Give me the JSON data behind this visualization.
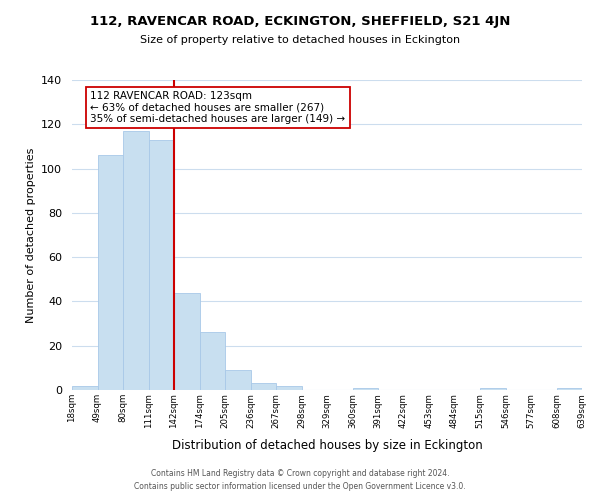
{
  "title": "112, RAVENCAR ROAD, ECKINGTON, SHEFFIELD, S21 4JN",
  "subtitle": "Size of property relative to detached houses in Eckington",
  "xlabel": "Distribution of detached houses by size in Eckington",
  "ylabel": "Number of detached properties",
  "bar_values": [
    2,
    106,
    117,
    113,
    44,
    26,
    9,
    3,
    2,
    0,
    0,
    1,
    0,
    0,
    0,
    0,
    1,
    0,
    0,
    1
  ],
  "bar_labels": [
    "18sqm",
    "49sqm",
    "80sqm",
    "111sqm",
    "142sqm",
    "174sqm",
    "205sqm",
    "236sqm",
    "267sqm",
    "298sqm",
    "329sqm",
    "360sqm",
    "391sqm",
    "422sqm",
    "453sqm",
    "484sqm",
    "515sqm",
    "546sqm",
    "577sqm",
    "608sqm",
    "639sqm"
  ],
  "bar_color": "#c8dff0",
  "bar_edge_color": "#a8c8e8",
  "vline_x": 3.5,
  "vline_color": "#cc0000",
  "annotation_title": "112 RAVENCAR ROAD: 123sqm",
  "annotation_line1": "← 63% of detached houses are smaller (267)",
  "annotation_line2": "35% of semi-detached houses are larger (149) →",
  "annotation_box_color": "#ffffff",
  "annotation_box_edge": "#cc0000",
  "ylim": [
    0,
    140
  ],
  "yticks": [
    0,
    20,
    40,
    60,
    80,
    100,
    120,
    140
  ],
  "footer1": "Contains HM Land Registry data © Crown copyright and database right 2024.",
  "footer2": "Contains public sector information licensed under the Open Government Licence v3.0.",
  "background_color": "#ffffff",
  "grid_color": "#ccddee"
}
